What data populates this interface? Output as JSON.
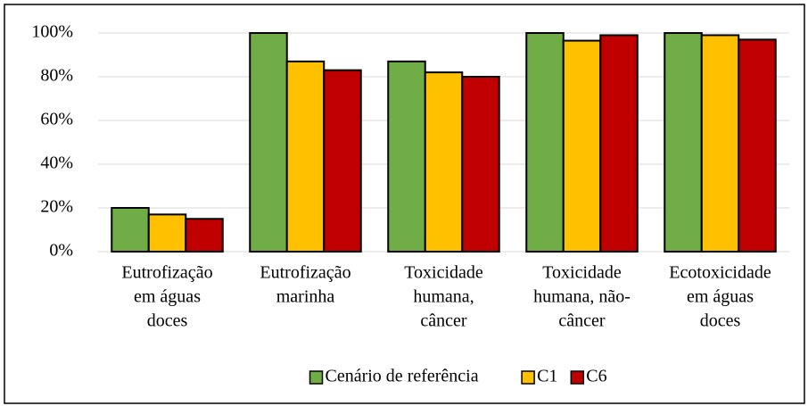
{
  "chart_data": {
    "type": "bar",
    "categories": [
      [
        "Eutrofização",
        "em águas",
        "doces"
      ],
      [
        "Eutrofização",
        "marinha"
      ],
      [
        "Toxicidade",
        "humana,",
        "câncer"
      ],
      [
        "Toxicidade",
        "humana, não-",
        "câncer"
      ],
      [
        "Ecotoxicidade",
        "em águas",
        "doces"
      ]
    ],
    "series": [
      {
        "name": "Cenário de referência",
        "color": "#70ad47",
        "values": [
          20,
          100,
          87,
          100,
          100
        ]
      },
      {
        "name": "C1",
        "color": "#ffc000",
        "values": [
          17,
          87,
          82,
          96.5,
          99
        ]
      },
      {
        "name": "C6",
        "color": "#c00000",
        "values": [
          15,
          83,
          80,
          99,
          97
        ]
      }
    ],
    "ylim": [
      0,
      100
    ],
    "yticks": [
      {
        "value": 0,
        "label": "0%"
      },
      {
        "value": 20,
        "label": "20%"
      },
      {
        "value": 40,
        "label": "40%"
      },
      {
        "value": 60,
        "label": "60%"
      },
      {
        "value": 80,
        "label": "80%"
      },
      {
        "value": 100,
        "label": "100%"
      }
    ],
    "grid": true,
    "legend": "bottom"
  }
}
